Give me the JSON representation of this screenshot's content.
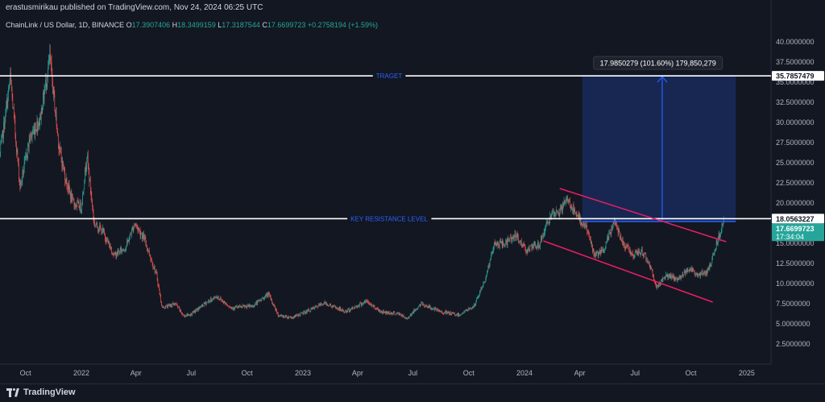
{
  "header": {
    "publisher_line": "erastusmirikau published on TradingView.com, Nov 24, 2024 06:25 UTC"
  },
  "legend": {
    "symbol": "ChainLink / US Dollar, 1D, BINANCE",
    "o_label": "O",
    "o_value": "17.3907406",
    "h_label": "H",
    "h_value": "18.3499159",
    "l_label": "L",
    "l_value": "17.3187544",
    "c_label": "C",
    "c_value": "17.6699723",
    "change": "+0.2758194 (+1.59%)"
  },
  "footer": {
    "brand": "TradingView"
  },
  "colors": {
    "background": "#131722",
    "up": "#26a69a",
    "down": "#ef5350",
    "drawing_blue": "#2962ff",
    "channel": "#e91e63",
    "hline": "#ffffff"
  },
  "chart_data": {
    "type": "candlestick",
    "ylim": [
      0,
      41.2
    ],
    "y_ticks": [
      "2.5000000",
      "5.0000000",
      "7.5000000",
      "10.0000000",
      "12.5000000",
      "15.0000000",
      "17.5000000",
      "20.0000000",
      "22.5000000",
      "25.0000000",
      "27.5000000",
      "30.0000000",
      "32.5000000",
      "35.0000000",
      "37.5000000",
      "40.0000000"
    ],
    "x_ticks": [
      "Oct",
      "2022",
      "Apr",
      "Jul",
      "Oct",
      "2023",
      "Apr",
      "Jul",
      "Oct",
      "2024",
      "Apr",
      "Jul",
      "Oct",
      "2025"
    ],
    "x_range": [
      "2021-08-20",
      "2025-02-10"
    ],
    "price_path": [
      [
        "2021-08-20",
        26.0
      ],
      [
        "2021-09-06",
        35.5
      ],
      [
        "2021-09-22",
        22.0
      ],
      [
        "2021-10-08",
        28.0
      ],
      [
        "2021-10-25",
        30.5
      ],
      [
        "2021-11-10",
        38.0
      ],
      [
        "2021-11-25",
        27.0
      ],
      [
        "2021-12-06",
        23.0
      ],
      [
        "2021-12-18",
        20.0
      ],
      [
        "2022-01-01",
        19.5
      ],
      [
        "2022-01-10",
        26.0
      ],
      [
        "2022-01-22",
        17.5
      ],
      [
        "2022-02-05",
        16.5
      ],
      [
        "2022-02-24",
        13.5
      ],
      [
        "2022-03-15",
        14.5
      ],
      [
        "2022-03-30",
        17.5
      ],
      [
        "2022-04-15",
        15.5
      ],
      [
        "2022-05-05",
        11.0
      ],
      [
        "2022-05-14",
        7.0
      ],
      [
        "2022-06-05",
        7.5
      ],
      [
        "2022-06-18",
        6.0
      ],
      [
        "2022-07-01",
        6.2
      ],
      [
        "2022-07-25",
        7.6
      ],
      [
        "2022-08-12",
        8.4
      ],
      [
        "2022-09-05",
        7.0
      ],
      [
        "2022-10-10",
        7.2
      ],
      [
        "2022-11-05",
        8.7
      ],
      [
        "2022-11-22",
        6.0
      ],
      [
        "2022-12-15",
        5.8
      ],
      [
        "2023-01-15",
        6.8
      ],
      [
        "2023-02-05",
        7.6
      ],
      [
        "2023-03-12",
        6.5
      ],
      [
        "2023-04-15",
        7.8
      ],
      [
        "2023-05-10",
        6.5
      ],
      [
        "2023-06-10",
        6.2
      ],
      [
        "2023-06-20",
        5.6
      ],
      [
        "2023-07-15",
        7.5
      ],
      [
        "2023-08-15",
        6.5
      ],
      [
        "2023-09-15",
        6.1
      ],
      [
        "2023-10-10",
        7.2
      ],
      [
        "2023-10-28",
        10.5
      ],
      [
        "2023-11-12",
        14.8
      ],
      [
        "2023-12-01",
        15.0
      ],
      [
        "2023-12-15",
        16.0
      ],
      [
        "2024-01-05",
        14.2
      ],
      [
        "2024-01-25",
        14.8
      ],
      [
        "2024-02-10",
        18.0
      ],
      [
        "2024-02-28",
        19.0
      ],
      [
        "2024-03-12",
        20.5
      ],
      [
        "2024-03-25",
        18.5
      ],
      [
        "2024-04-12",
        17.0
      ],
      [
        "2024-04-25",
        13.5
      ],
      [
        "2024-05-10",
        14.0
      ],
      [
        "2024-05-28",
        17.8
      ],
      [
        "2024-06-12",
        15.0
      ],
      [
        "2024-06-28",
        13.5
      ],
      [
        "2024-07-12",
        14.0
      ],
      [
        "2024-07-25",
        12.5
      ],
      [
        "2024-08-05",
        9.5
      ],
      [
        "2024-08-20",
        11.0
      ],
      [
        "2024-09-10",
        10.5
      ],
      [
        "2024-09-28",
        12.0
      ],
      [
        "2024-10-12",
        11.0
      ],
      [
        "2024-10-28",
        11.5
      ],
      [
        "2024-11-05",
        13.0
      ],
      [
        "2024-11-12",
        15.0
      ],
      [
        "2024-11-24",
        17.67
      ]
    ]
  },
  "annotations": {
    "target": {
      "label": "TRAGET",
      "price": 35.7857479,
      "price_label": "35.7857479"
    },
    "key_resistance": {
      "label": "KEY RESISTANCE LEVEL",
      "price": 18.0563227,
      "price_label": "18.0563227"
    },
    "last_price": {
      "price": 17.6699723,
      "price_label": "17.6699723",
      "countdown": "17:34:04"
    },
    "projection": {
      "label": "17.9850279 (101.60%) 179,850,279",
      "start": "2024-04-05",
      "end": "2024-12-14",
      "from_price": 17.7,
      "to_price": 35.7857479
    },
    "channel": {
      "upper": [
        [
          "2024-02-28",
          21.8
        ],
        [
          "2024-11-28",
          15.2
        ]
      ],
      "lower": [
        [
          "2024-02-01",
          15.3
        ],
        [
          "2024-11-06",
          7.7
        ]
      ]
    }
  }
}
